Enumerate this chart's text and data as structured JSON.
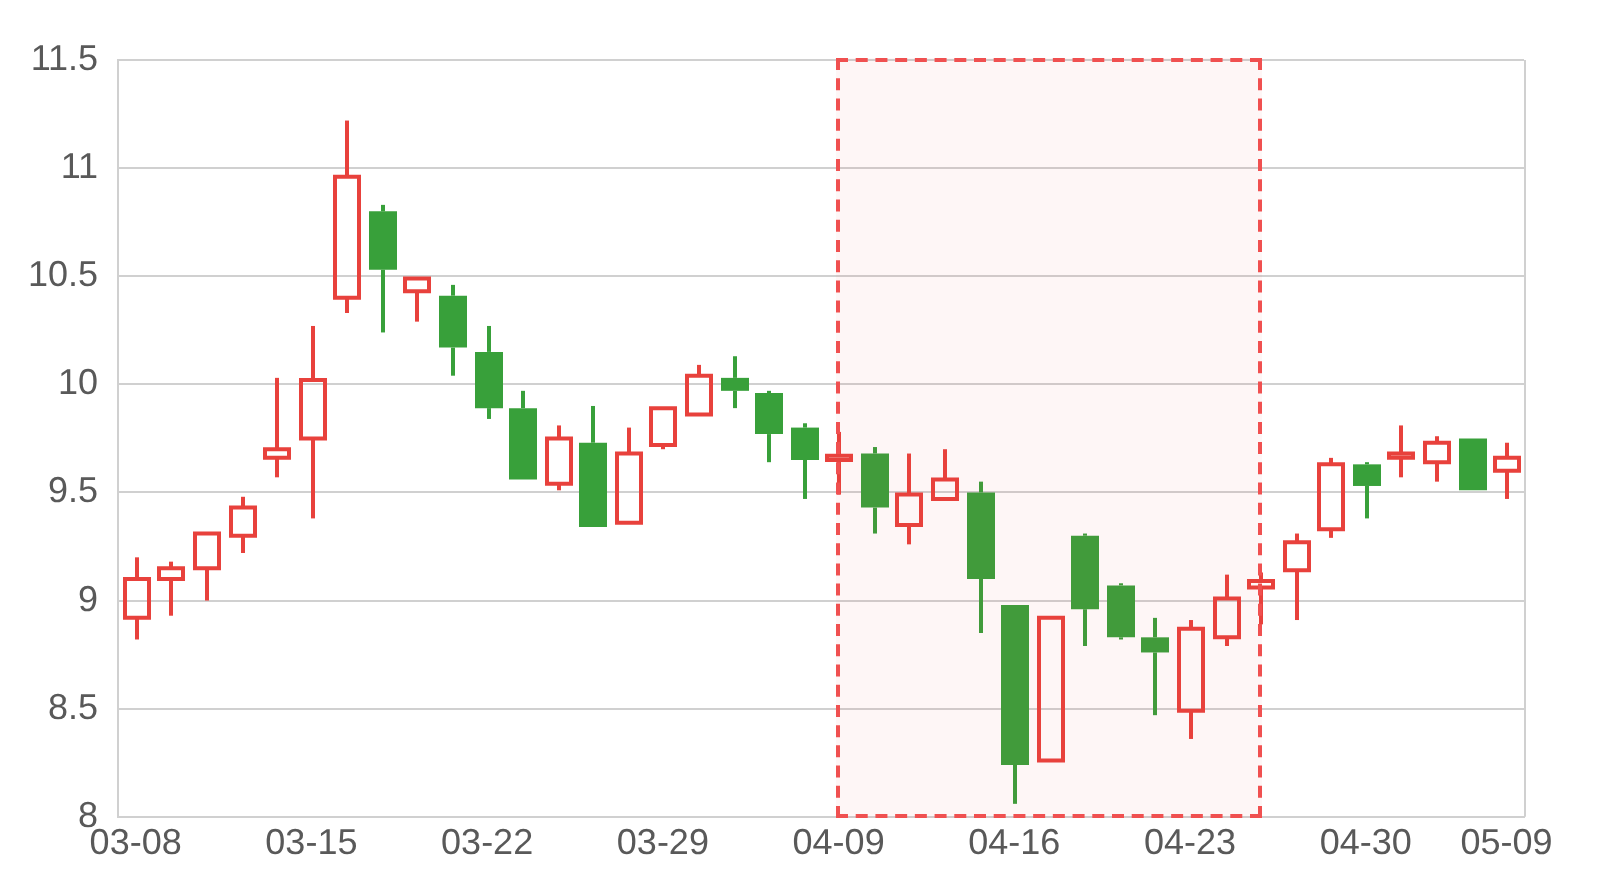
{
  "chart_data": {
    "type": "candlestick",
    "categories": [
      "03-08",
      null,
      null,
      null,
      null,
      "03-15",
      null,
      null,
      null,
      null,
      "03-22",
      null,
      null,
      null,
      null,
      "03-29",
      null,
      null,
      null,
      null,
      "04-09",
      null,
      null,
      null,
      null,
      "04-16",
      null,
      null,
      null,
      null,
      "04-23",
      null,
      null,
      null,
      null,
      "04-30",
      null,
      null,
      null,
      "05-09"
    ],
    "ohlc": [
      [
        8.92,
        9.2,
        8.82,
        9.1
      ],
      [
        9.1,
        9.18,
        8.93,
        9.15
      ],
      [
        9.15,
        9.31,
        9.0,
        9.31
      ],
      [
        9.3,
        9.48,
        9.22,
        9.43
      ],
      [
        9.66,
        10.03,
        9.57,
        9.7
      ],
      [
        9.75,
        10.27,
        9.38,
        10.02
      ],
      [
        10.4,
        11.22,
        10.33,
        10.96
      ],
      [
        10.8,
        10.83,
        10.24,
        10.53
      ],
      [
        10.43,
        10.49,
        10.29,
        10.49
      ],
      [
        10.41,
        10.46,
        10.04,
        10.17
      ],
      [
        10.15,
        10.27,
        9.84,
        9.89
      ],
      [
        9.89,
        9.97,
        9.56,
        9.56
      ],
      [
        9.54,
        9.81,
        9.51,
        9.75
      ],
      [
        9.73,
        9.9,
        9.34,
        9.34
      ],
      [
        9.36,
        9.8,
        9.36,
        9.68
      ],
      [
        9.72,
        9.89,
        9.7,
        9.89
      ],
      [
        9.86,
        10.09,
        9.86,
        10.04
      ],
      [
        10.03,
        10.13,
        9.89,
        9.97
      ],
      [
        9.96,
        9.97,
        9.64,
        9.77
      ],
      [
        9.8,
        9.82,
        9.47,
        9.65
      ],
      [
        9.65,
        9.78,
        9.49,
        9.67
      ],
      [
        9.68,
        9.71,
        9.31,
        9.43
      ],
      [
        9.35,
        9.68,
        9.26,
        9.49
      ],
      [
        9.47,
        9.7,
        9.47,
        9.56
      ],
      [
        9.5,
        9.55,
        8.85,
        9.1
      ],
      [
        8.98,
        8.98,
        8.06,
        8.24
      ],
      [
        8.26,
        8.92,
        8.26,
        8.92
      ],
      [
        9.3,
        9.31,
        8.79,
        8.96
      ],
      [
        9.07,
        9.08,
        8.82,
        8.83
      ],
      [
        8.83,
        8.92,
        8.47,
        8.76
      ],
      [
        8.49,
        8.91,
        8.36,
        8.87
      ],
      [
        8.83,
        9.12,
        8.79,
        9.01
      ],
      [
        9.06,
        9.13,
        8.89,
        9.09
      ],
      [
        9.14,
        9.31,
        8.91,
        9.27
      ],
      [
        9.33,
        9.66,
        9.29,
        9.63
      ],
      [
        9.63,
        9.64,
        9.38,
        9.53
      ],
      [
        9.66,
        9.81,
        9.57,
        9.68
      ],
      [
        9.64,
        9.76,
        9.55,
        9.73
      ],
      [
        9.75,
        9.75,
        9.51,
        9.51
      ],
      [
        9.6,
        9.73,
        9.47,
        9.66
      ]
    ],
    "colors": [
      "#e8413c",
      "#e8413c",
      "#e8413c",
      "#e8413c",
      "#e8413c",
      "#e8413c",
      "#e8413c",
      "#38a03a",
      "#e8413c",
      "#38a03a",
      "#38a03a",
      "#38a03a",
      "#e8413c",
      "#38a03a",
      "#e8413c",
      "#e8413c",
      "#e8413c",
      "#38a03a",
      "#38a03a",
      "#38a03a",
      "#e8413c",
      "#38a03a",
      "#e8413c",
      "#e8413c",
      "#38a03a",
      "#38a03a",
      "#e8413c",
      "#38a03a",
      "#38a03a",
      "#38a03a",
      "#e8413c",
      "#e8413c",
      "#e8413c",
      "#e8413c",
      "#e8413c",
      "#38a03a",
      "#e8413c",
      "#e8413c",
      "#38a03a",
      "#e8413c"
    ],
    "ylim": [
      8,
      11.5
    ],
    "yticks": [
      8,
      8.5,
      9,
      9.5,
      10,
      10.5,
      11,
      11.5
    ],
    "grid": "y"
  }
}
